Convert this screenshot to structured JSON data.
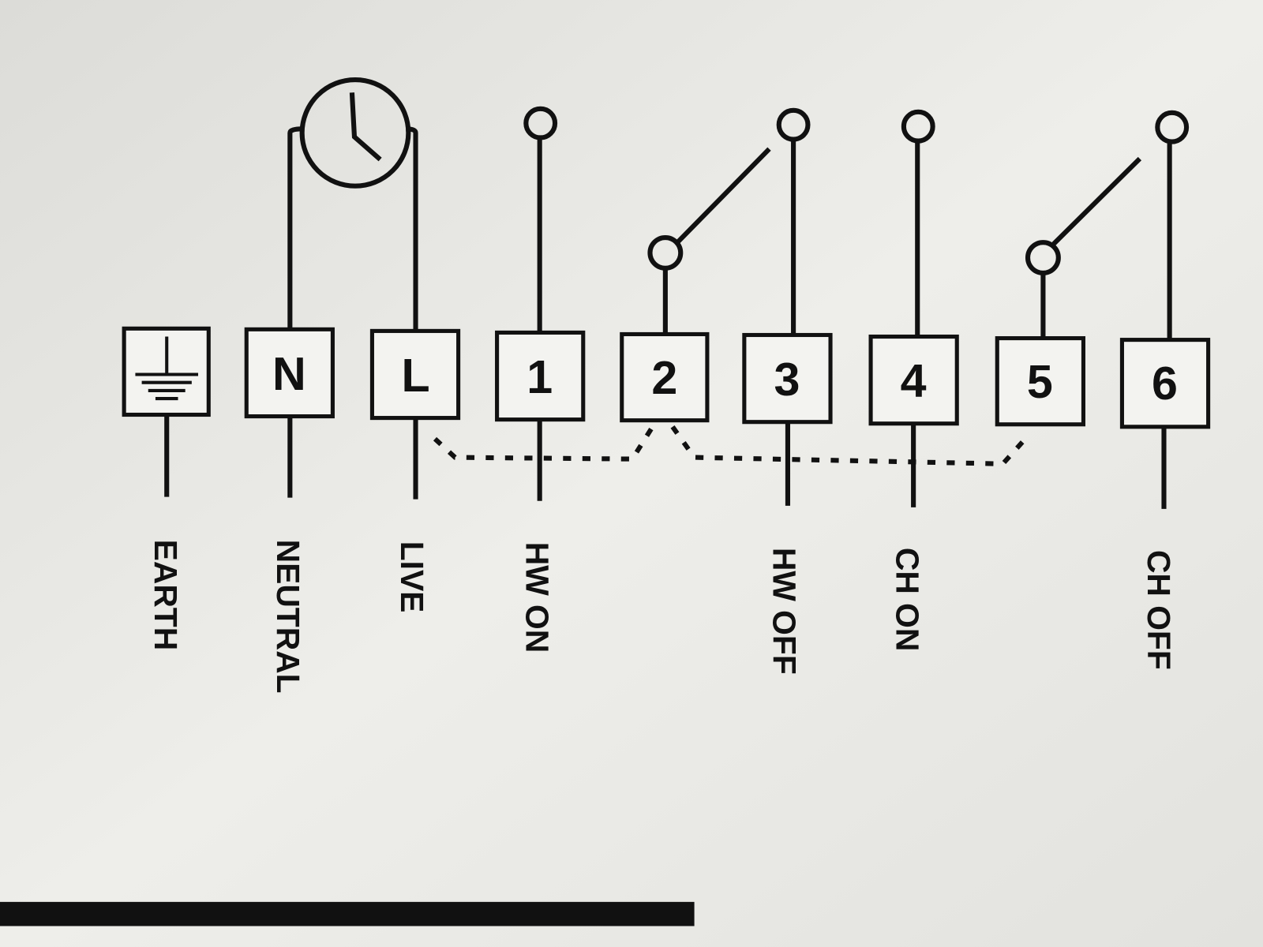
{
  "terminals": {
    "earth_symbol": "earth-ground",
    "n": "N",
    "l": "L",
    "t1": "1",
    "t2": "2",
    "t3": "3",
    "t4": "4",
    "t5": "5",
    "t6": "6"
  },
  "labels": {
    "earth": "EARTH",
    "neutral": "NEUTRAL",
    "live": "LIVE",
    "hw_on": "HW ON",
    "hw_off": "HW OFF",
    "ch_on": "CH ON",
    "ch_off": "CH OFF"
  },
  "icons": {
    "clock": "clock-icon",
    "earth": "earth-ground-icon"
  }
}
